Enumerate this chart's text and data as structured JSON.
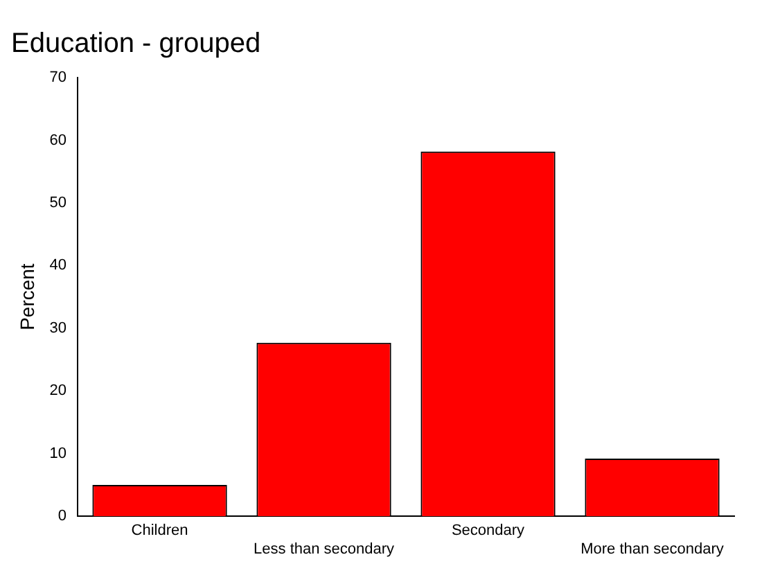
{
  "chart_data": {
    "type": "bar",
    "title": "Education - grouped",
    "ylabel": "Percent",
    "categories": [
      "Children",
      "Less than secondary",
      "Secondary",
      "More than secondary"
    ],
    "values": [
      5.0,
      27.7,
      58.2,
      9.2
    ],
    "color": "#ff0000",
    "ylim": [
      0,
      70
    ],
    "yticks": [
      0,
      10,
      20,
      30,
      40,
      50,
      60,
      70
    ],
    "grid": false,
    "legend": false
  }
}
